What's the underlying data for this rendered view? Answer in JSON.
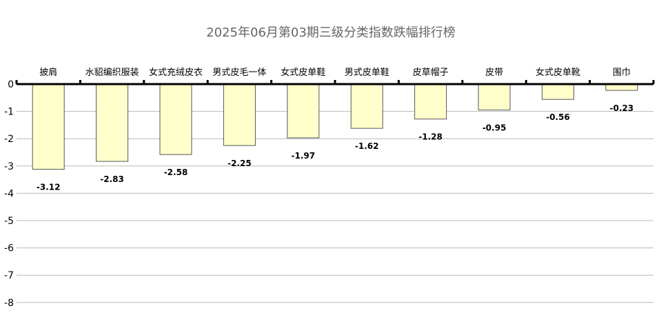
{
  "chart_data": {
    "type": "bar",
    "title": "2025年06月第03期三级分类指数跌幅排行榜",
    "categories": [
      "披肩",
      "水貂编织服装",
      "女式充绒皮衣",
      "男式皮毛一体",
      "女式皮单鞋",
      "男式皮单鞋",
      "皮草帽子",
      "皮带",
      "女式皮单靴",
      "围巾"
    ],
    "values": [
      -3.12,
      -2.83,
      -2.58,
      -2.25,
      -1.97,
      -1.62,
      -1.28,
      -0.95,
      -0.56,
      -0.23
    ],
    "data_labels": [
      "-3.12",
      "-2.83",
      "-2.58",
      "-2.25",
      "-1.97",
      "-1.62",
      "-1.28",
      "-0.95",
      "-0.56",
      "-0.23"
    ],
    "ylim": [
      -8,
      0
    ],
    "yticks": [
      "0",
      "-1",
      "-2",
      "-3",
      "-4",
      "-5",
      "-6",
      "-7",
      "-8"
    ],
    "grid": true,
    "colors": {
      "bar_fill": "#ffffcc",
      "bar_stroke": "#555555",
      "grid": "#b8b8b8",
      "axis": "#000000",
      "title": "#666666"
    }
  }
}
